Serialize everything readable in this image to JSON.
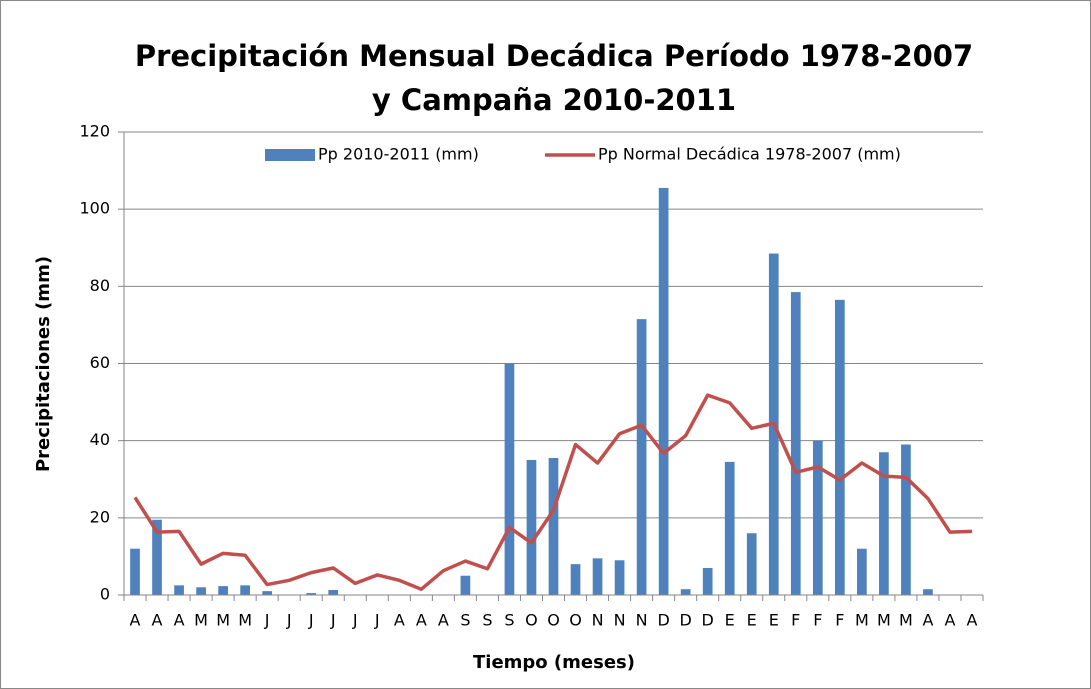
{
  "chart_data": {
    "type": "bar_line",
    "title": "Precipitación Mensual Decádica Período 1978-2007",
    "subtitle": "y Campaña  2010-2011",
    "x_label": "Tiempo (meses)",
    "y_label": "Precipitaciones (mm)",
    "categories": [
      "A",
      "A",
      "A",
      "M",
      "M",
      "M",
      "J",
      "J",
      "J",
      "J",
      "J",
      "J",
      "A",
      "A",
      "A",
      "S",
      "S",
      "S",
      "O",
      "O",
      "O",
      "N",
      "N",
      "N",
      "D",
      "D",
      "D",
      "E",
      "E",
      "E",
      "F",
      "F",
      "F",
      "M",
      "M",
      "M",
      "A",
      "A",
      "A"
    ],
    "series": [
      {
        "name": "Pp 2010-2011 (mm)",
        "type": "bar",
        "color": "#4f81bd",
        "values": [
          12,
          19.5,
          2.5,
          2,
          2.3,
          2.5,
          1,
          0,
          0.5,
          1.3,
          0,
          0,
          0,
          0,
          0,
          5,
          0,
          60,
          35,
          35.5,
          8,
          9.5,
          9,
          71.5,
          105.5,
          1.5,
          7,
          34.5,
          16,
          88.5,
          78.5,
          40,
          76.5,
          12,
          37,
          39,
          1.5,
          0,
          0
        ]
      },
      {
        "name": "Pp Normal Decádica 1978-2007 (mm)",
        "type": "line",
        "color": "#c0504d",
        "values": [
          25.3,
          16.3,
          16.5,
          8,
          10.8,
          10.3,
          2.7,
          3.8,
          5.8,
          7,
          3,
          5.2,
          3.8,
          1.5,
          6.3,
          8.8,
          6.8,
          17.5,
          13.5,
          22,
          39,
          34.2,
          41.8,
          44,
          36.7,
          41.3,
          51.8,
          49.8,
          43.2,
          44.5,
          31.8,
          33.2,
          29.8,
          34.2,
          30.8,
          30.5,
          25,
          16.3,
          16.5
        ]
      }
    ],
    "ylim": [
      0,
      120
    ],
    "yticks": [
      0,
      20,
      40,
      60,
      80,
      100,
      120
    ],
    "grid": true,
    "legend": "top"
  }
}
